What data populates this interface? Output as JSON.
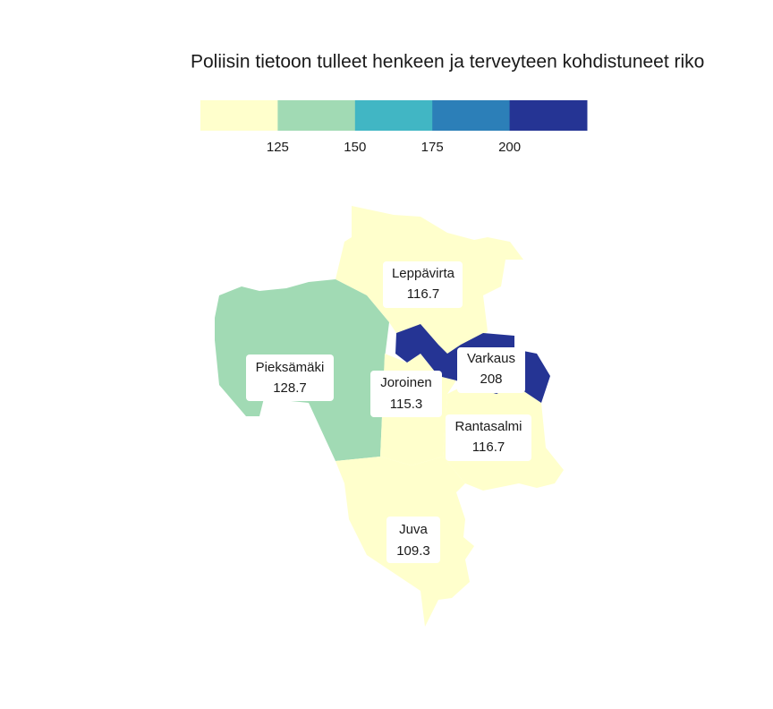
{
  "map_data": {
    "type": "choropleth",
    "title": "Poliisin tietoon tulleet henkeen ja terveyteen kohdistuneet riko",
    "legend": {
      "colors": [
        "#ffffcc",
        "#a1dab4",
        "#41b6c4",
        "#2c7fb8",
        "#253494"
      ],
      "breaks": [
        125,
        150,
        175,
        200
      ],
      "range": [
        100,
        225
      ]
    },
    "regions": [
      {
        "name": "Leppävirta",
        "value": 116.7
      },
      {
        "name": "Pieksämäki",
        "value": 128.7
      },
      {
        "name": "Varkaus",
        "value": 208
      },
      {
        "name": "Joroinen",
        "value": 115.3
      },
      {
        "name": "Rantasalmi",
        "value": 116.7
      },
      {
        "name": "Juva",
        "value": 109.3
      }
    ]
  }
}
